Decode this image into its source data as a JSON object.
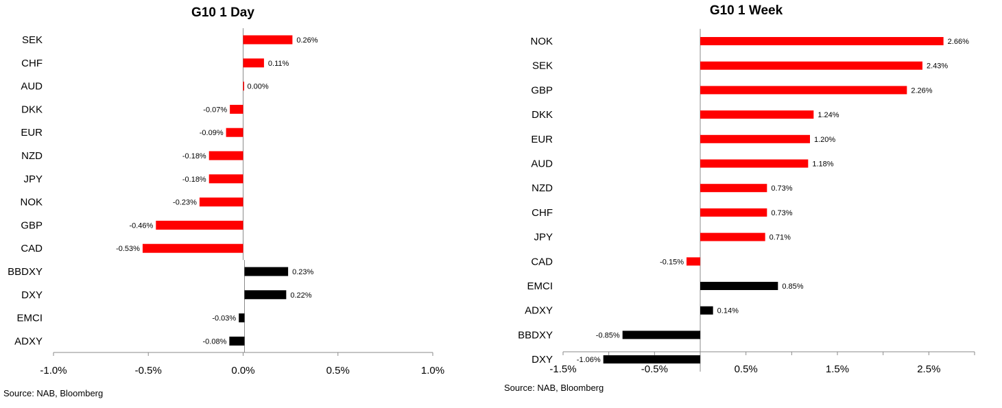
{
  "chart_data": [
    {
      "type": "bar",
      "orientation": "horizontal",
      "title": "G10 1 Day",
      "source": "Source: NAB, Bloomberg",
      "xlim": [
        -1.0,
        1.0
      ],
      "xticks": [
        "-1.0%",
        "-0.5%",
        "0.0%",
        "0.5%",
        "1.0%"
      ],
      "xtick_values": [
        -1.0,
        -0.5,
        0.0,
        0.5,
        1.0
      ],
      "groups": [
        {
          "color": "#ff0000",
          "categories": [
            "SEK",
            "CHF",
            "AUD",
            "DKK",
            "EUR",
            "NZD",
            "JPY",
            "NOK",
            "GBP",
            "CAD"
          ],
          "values": [
            0.26,
            0.11,
            0.0,
            -0.07,
            -0.09,
            -0.18,
            -0.18,
            -0.23,
            -0.46,
            -0.53
          ],
          "labels": [
            "0.26%",
            "0.11%",
            "0.00%",
            "-0.07%",
            "-0.09%",
            "-0.18%",
            "-0.18%",
            "-0.23%",
            "-0.46%",
            "-0.53%"
          ]
        },
        {
          "color": "#000000",
          "categories": [
            "BBDXY",
            "DXY",
            "EMCI",
            "ADXY"
          ],
          "values": [
            0.23,
            0.22,
            -0.03,
            -0.08
          ],
          "labels": [
            "0.23%",
            "0.22%",
            "-0.03%",
            "-0.08%"
          ]
        }
      ]
    },
    {
      "type": "bar",
      "orientation": "horizontal",
      "title": "G10 1 Week",
      "source": "Source: NAB, Bloomberg",
      "xlim": [
        -1.5,
        3.0
      ],
      "xticks": [
        "-1.5%",
        "-0.5%",
        "0.5%",
        "1.5%",
        "2.5%"
      ],
      "xtick_values": [
        -1.5,
        -0.5,
        0.5,
        1.5,
        2.5
      ],
      "groups": [
        {
          "color": "#ff0000",
          "categories": [
            "NOK",
            "SEK",
            "GBP",
            "DKK",
            "EUR",
            "AUD",
            "NZD",
            "CHF",
            "JPY",
            "CAD"
          ],
          "values": [
            2.66,
            2.43,
            2.26,
            1.24,
            1.2,
            1.18,
            0.73,
            0.73,
            0.71,
            -0.15
          ],
          "labels": [
            "2.66%",
            "2.43%",
            "2.26%",
            "1.24%",
            "1.20%",
            "1.18%",
            "0.73%",
            "0.73%",
            "0.71%",
            "-0.15%"
          ]
        },
        {
          "color": "#000000",
          "categories": [
            "EMCI",
            "ADXY",
            "BBDXY",
            "DXY"
          ],
          "values": [
            0.85,
            0.14,
            -0.85,
            -1.06
          ],
          "labels": [
            "0.85%",
            "0.14%",
            "-0.85%",
            "-1.06%"
          ]
        }
      ]
    }
  ]
}
